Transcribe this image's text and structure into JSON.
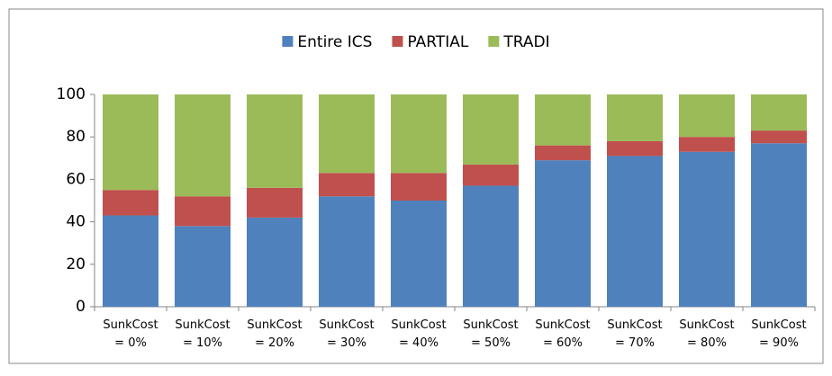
{
  "chart_data": {
    "type": "stacked-bar",
    "categories": [
      "SunkCost = 0%",
      "SunkCost = 10%",
      "SunkCost = 20%",
      "SunkCost = 30%",
      "SunkCost = 40%",
      "SunkCost = 50%",
      "SunkCost = 60%",
      "SunkCost = 70%",
      "SunkCost = 80%",
      "SunkCost = 90%"
    ],
    "series": [
      {
        "name": "Entire ICS",
        "color": "#4f81bd",
        "values": [
          43,
          38,
          42,
          52,
          50,
          57,
          69,
          71,
          73,
          77
        ]
      },
      {
        "name": "PARTIAL",
        "color": "#c0504d",
        "values": [
          12,
          14,
          14,
          11,
          13,
          10,
          7,
          7,
          7,
          6
        ]
      },
      {
        "name": "TRADI",
        "color": "#9bbb59",
        "values": [
          45,
          48,
          44,
          37,
          37,
          33,
          24,
          22,
          20,
          17
        ]
      }
    ],
    "ylim": [
      0,
      100
    ],
    "yticks": [
      0,
      20,
      40,
      60,
      80,
      100
    ],
    "legend": "top"
  }
}
